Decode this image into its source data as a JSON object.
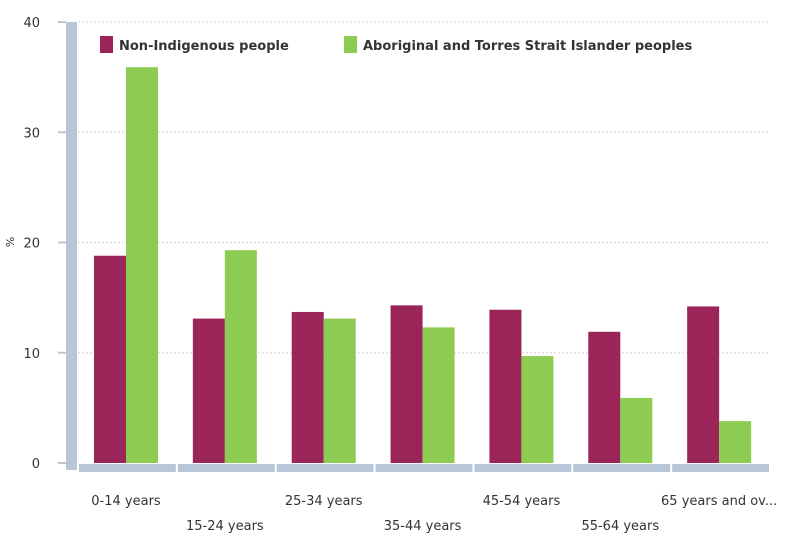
{
  "chart_data": {
    "type": "bar",
    "categories": [
      "0-14 years",
      "15-24 years",
      "25-34 years",
      "35-44 years",
      "45-54 years",
      "55-64 years",
      "65 years and ov..."
    ],
    "series": [
      {
        "name": "Non-Indigenous people",
        "color": "#9b2458",
        "values": [
          18.8,
          13.1,
          13.7,
          14.3,
          13.9,
          11.9,
          14.2
        ]
      },
      {
        "name": "Aboriginal and Torres Strait Islander peoples",
        "color": "#8ccc52",
        "values": [
          35.9,
          19.3,
          13.1,
          12.3,
          9.7,
          5.9,
          3.8
        ]
      }
    ],
    "title": "",
    "xlabel": "",
    "ylabel": "%",
    "ylim": [
      0,
      40
    ],
    "yticks": [
      0,
      10,
      20,
      30,
      40
    ],
    "grid": true,
    "legend": "top"
  }
}
